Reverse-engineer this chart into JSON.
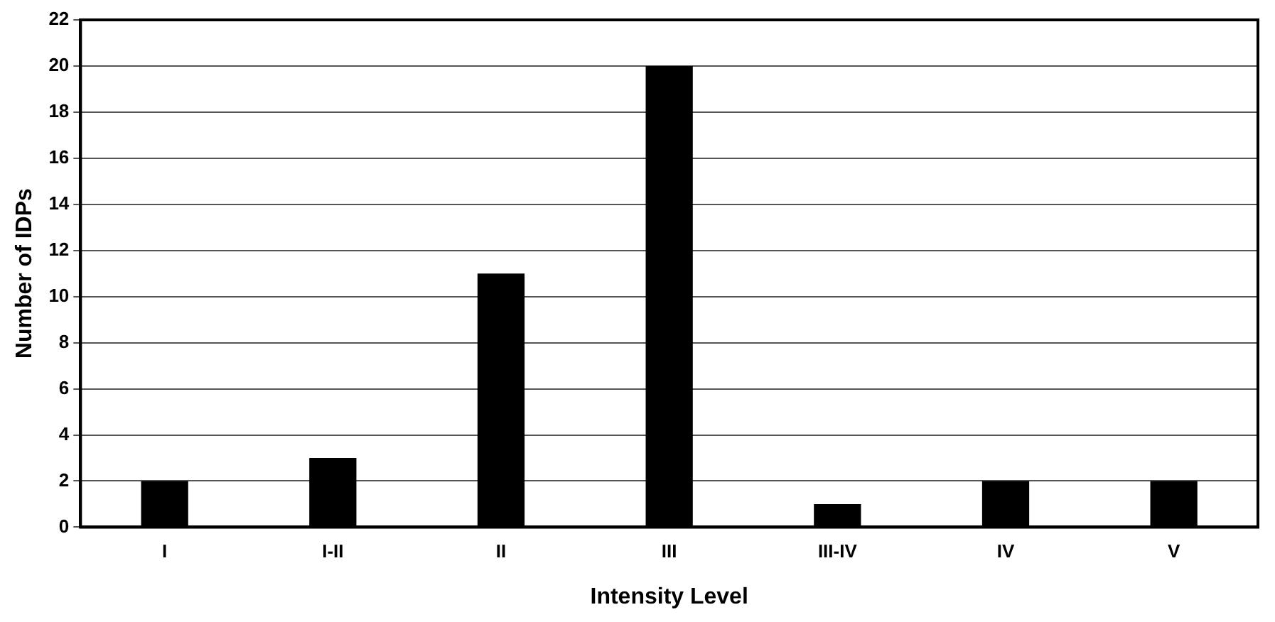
{
  "chart_data": {
    "type": "bar",
    "xlabel": "Intensity Level",
    "ylabel": "Number of IDPs",
    "categories": [
      "I",
      "I-II",
      "II",
      "III",
      "III-IV",
      "IV",
      "V"
    ],
    "values": [
      2,
      3,
      11,
      20,
      1,
      2,
      2
    ],
    "color": "#000000",
    "ylim": [
      0,
      22
    ],
    "yticks": [
      0,
      2,
      4,
      6,
      8,
      10,
      12,
      14,
      16,
      18,
      20,
      22
    ],
    "grid": "y",
    "legend": false
  }
}
